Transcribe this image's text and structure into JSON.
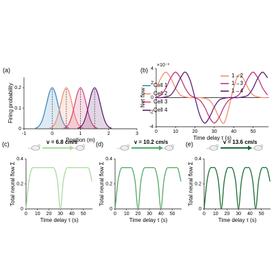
{
  "chart_data": [
    {
      "type": "line",
      "panel_label": "(a)",
      "xlabel": "Position (m)",
      "ylabel": "Firing probability",
      "xlim": [
        -1,
        3
      ],
      "xticks": [
        -1,
        0,
        1,
        2,
        3
      ],
      "ylim": [
        0,
        0.25
      ],
      "yticks": [
        0,
        0.1,
        0.2
      ],
      "fill": true,
      "peak_lines": true,
      "legend": "right",
      "x": [
        -0.6,
        -0.5,
        -0.4,
        -0.3,
        -0.2,
        -0.1,
        0,
        0.1,
        0.2,
        0.3,
        0.4,
        0.5,
        0.6,
        0.7,
        0.8,
        0.9,
        1,
        1.1,
        1.2,
        1.3,
        1.4,
        1.5,
        1.6,
        1.7,
        1.8,
        1.9,
        2,
        2.1
      ],
      "series": [
        {
          "name": "Cell 1",
          "color": "#3b88c0",
          "values": [
            0.0022,
            0.0088,
            0.0271,
            0.0649,
            0.1213,
            0.1765,
            0.2,
            0.1765,
            0.1213,
            0.0649,
            0.0271,
            0.0088,
            0.0022,
            null,
            null,
            null,
            null,
            null,
            null,
            null,
            null,
            null,
            null,
            null,
            null,
            null,
            null,
            null
          ]
        },
        {
          "name": "Cell 2",
          "color": "#f08c6c",
          "values": [
            null,
            null,
            null,
            null,
            null,
            0.0022,
            0.0088,
            0.0271,
            0.0649,
            0.1213,
            0.1765,
            0.2,
            0.1765,
            0.1213,
            0.0649,
            0.0271,
            0.0088,
            0.0022,
            null,
            null,
            null,
            null,
            null,
            null,
            null,
            null,
            null,
            null
          ]
        },
        {
          "name": "Cell 3",
          "color": "#d8457c",
          "values": [
            null,
            null,
            null,
            null,
            null,
            null,
            null,
            null,
            null,
            null,
            0.0022,
            0.0088,
            0.0271,
            0.0649,
            0.1213,
            0.1765,
            0.2,
            0.1765,
            0.1213,
            0.0649,
            0.0271,
            0.0088,
            0.0022,
            null,
            null,
            null,
            null,
            null
          ]
        },
        {
          "name": "Cell 4",
          "color": "#5c1a70",
          "values": [
            null,
            null,
            null,
            null,
            null,
            null,
            null,
            null,
            null,
            null,
            null,
            null,
            null,
            null,
            null,
            0.0022,
            0.0088,
            0.0271,
            0.0649,
            0.1213,
            0.1765,
            0.2,
            0.1765,
            0.1213,
            0.0649,
            0.0271,
            0.0088,
            0.0022
          ]
        }
      ]
    },
    {
      "type": "line",
      "panel_label": "(b)",
      "xlabel": "Time delay τ (s)",
      "ylabel": "Net flow",
      "yscale_label": "×10⁻³",
      "xlim": [
        0,
        58
      ],
      "xticks": [
        0,
        10,
        20,
        30,
        40,
        50
      ],
      "ylim": [
        -4,
        4
      ],
      "yticks": [
        -4,
        -2,
        0,
        2,
        4
      ],
      "zero_line": true,
      "legend": "upper right",
      "x": [
        0,
        2.5,
        5,
        7.5,
        10,
        12.5,
        15,
        17.5,
        20,
        22.5,
        25,
        27.5,
        30,
        32.5,
        35,
        37.5,
        40,
        42.5,
        45,
        47.5,
        50,
        52.5,
        55,
        57.5
      ],
      "series": [
        {
          "name": "1→2",
          "color": "#f08c6c",
          "values": [
            1.3,
            2.7,
            3.5,
            2.7,
            1.3,
            0.35,
            0.1,
            0,
            0,
            0,
            -0.1,
            -0.35,
            -1.3,
            -2.7,
            -3.5,
            -1.4,
            1.4,
            3.1,
            2.6,
            1.3,
            0.35,
            0.1,
            0,
            0
          ]
        },
        {
          "name": "1→3",
          "color": "#c0307a",
          "values": [
            0.1,
            0.35,
            1.3,
            2.7,
            3.5,
            2.7,
            1.3,
            0.35,
            0,
            -0.35,
            -1.3,
            -2.7,
            -3.5,
            -2.7,
            -1.3,
            -0.35,
            0,
            0.35,
            1.3,
            2.7,
            3.5,
            2.7,
            1.3,
            0.35
          ]
        },
        {
          "name": "1→4",
          "color": "#5c1a70",
          "values": [
            0,
            0,
            0.1,
            0.35,
            1.3,
            2.7,
            3.5,
            2.4,
            0,
            -2.4,
            -3.5,
            -2.7,
            -1.3,
            -0.35,
            -0.1,
            0,
            0,
            0,
            0.1,
            0.35,
            1.3,
            2.7,
            3.5,
            2.7
          ]
        }
      ]
    },
    {
      "type": "line",
      "panel_label": "(c)",
      "xlabel": "Time delay τ (s)",
      "ylabel": "Total neural flow Σ",
      "annotation": "v = 6.8 cm/s",
      "xlim": [
        0,
        58
      ],
      "xticks": [
        0,
        10,
        20,
        30,
        40,
        50
      ],
      "ylim": [
        0,
        0.4
      ],
      "yticks": [
        0,
        0.2,
        0.4
      ],
      "x": [
        0,
        2.5,
        5,
        7.5,
        10,
        12.5,
        15,
        17.5,
        20,
        22.5,
        25,
        27.5,
        30,
        32.5,
        35,
        37.5,
        40,
        42.5,
        45,
        47.5,
        50,
        52.5,
        55,
        57.5
      ],
      "series": [
        {
          "color": "#a6dc9c",
          "values": [
            0,
            0.22,
            0.32,
            0.33,
            0.33,
            0.33,
            0.33,
            0.33,
            0.33,
            0.33,
            0.32,
            0.22,
            0,
            0.22,
            0.32,
            0.33,
            0.33,
            0.33,
            0.33,
            0.33,
            0.33,
            0.33,
            0.32,
            0.22
          ]
        }
      ]
    },
    {
      "type": "line",
      "panel_label": "(d)",
      "xlabel": "Time delay τ (s)",
      "ylabel": "Total neural flow Σ",
      "annotation": "v = 10.2 cm/s",
      "xlim": [
        0,
        58
      ],
      "xticks": [
        0,
        10,
        20,
        30,
        40,
        50
      ],
      "ylim": [
        0,
        0.4
      ],
      "yticks": [
        0,
        0.2,
        0.4
      ],
      "x": [
        0,
        2.5,
        5,
        7.5,
        10,
        12.5,
        15,
        17.5,
        20,
        22.5,
        25,
        27.5,
        30,
        32.5,
        35,
        37.5,
        40,
        42.5,
        45,
        47.5,
        50,
        52.5,
        55,
        57.5
      ],
      "series": [
        {
          "color": "#4fa860",
          "values": [
            0,
            0.22,
            0.32,
            0.33,
            0.33,
            0.33,
            0.32,
            0.22,
            0,
            0.22,
            0.32,
            0.33,
            0.33,
            0.33,
            0.32,
            0.22,
            0,
            0.22,
            0.32,
            0.33,
            0.33,
            0.33,
            0.32,
            0.22
          ]
        }
      ]
    },
    {
      "type": "line",
      "panel_label": "(e)",
      "xlabel": "Time delay τ (s)",
      "ylabel": "Total neural flow Σ",
      "annotation": "v = 13.6 cm/s",
      "xlim": [
        0,
        58
      ],
      "xticks": [
        0,
        10,
        20,
        30,
        40,
        50
      ],
      "ylim": [
        0,
        0.4
      ],
      "yticks": [
        0,
        0.2,
        0.4
      ],
      "x": [
        0,
        2.5,
        5,
        7.5,
        10,
        12.5,
        15,
        17.5,
        20,
        22.5,
        25,
        27.5,
        30,
        32.5,
        35,
        37.5,
        40,
        42.5,
        45,
        47.5,
        50,
        52.5,
        55,
        57.5
      ],
      "series": [
        {
          "color": "#17692e",
          "values": [
            0,
            0.22,
            0.32,
            0.33,
            0.32,
            0.22,
            0,
            0.22,
            0.32,
            0.33,
            0.32,
            0.22,
            0,
            0.22,
            0.32,
            0.33,
            0.32,
            0.22,
            0,
            0.22,
            0.32,
            0.33,
            0.32,
            0.22
          ]
        }
      ]
    }
  ]
}
